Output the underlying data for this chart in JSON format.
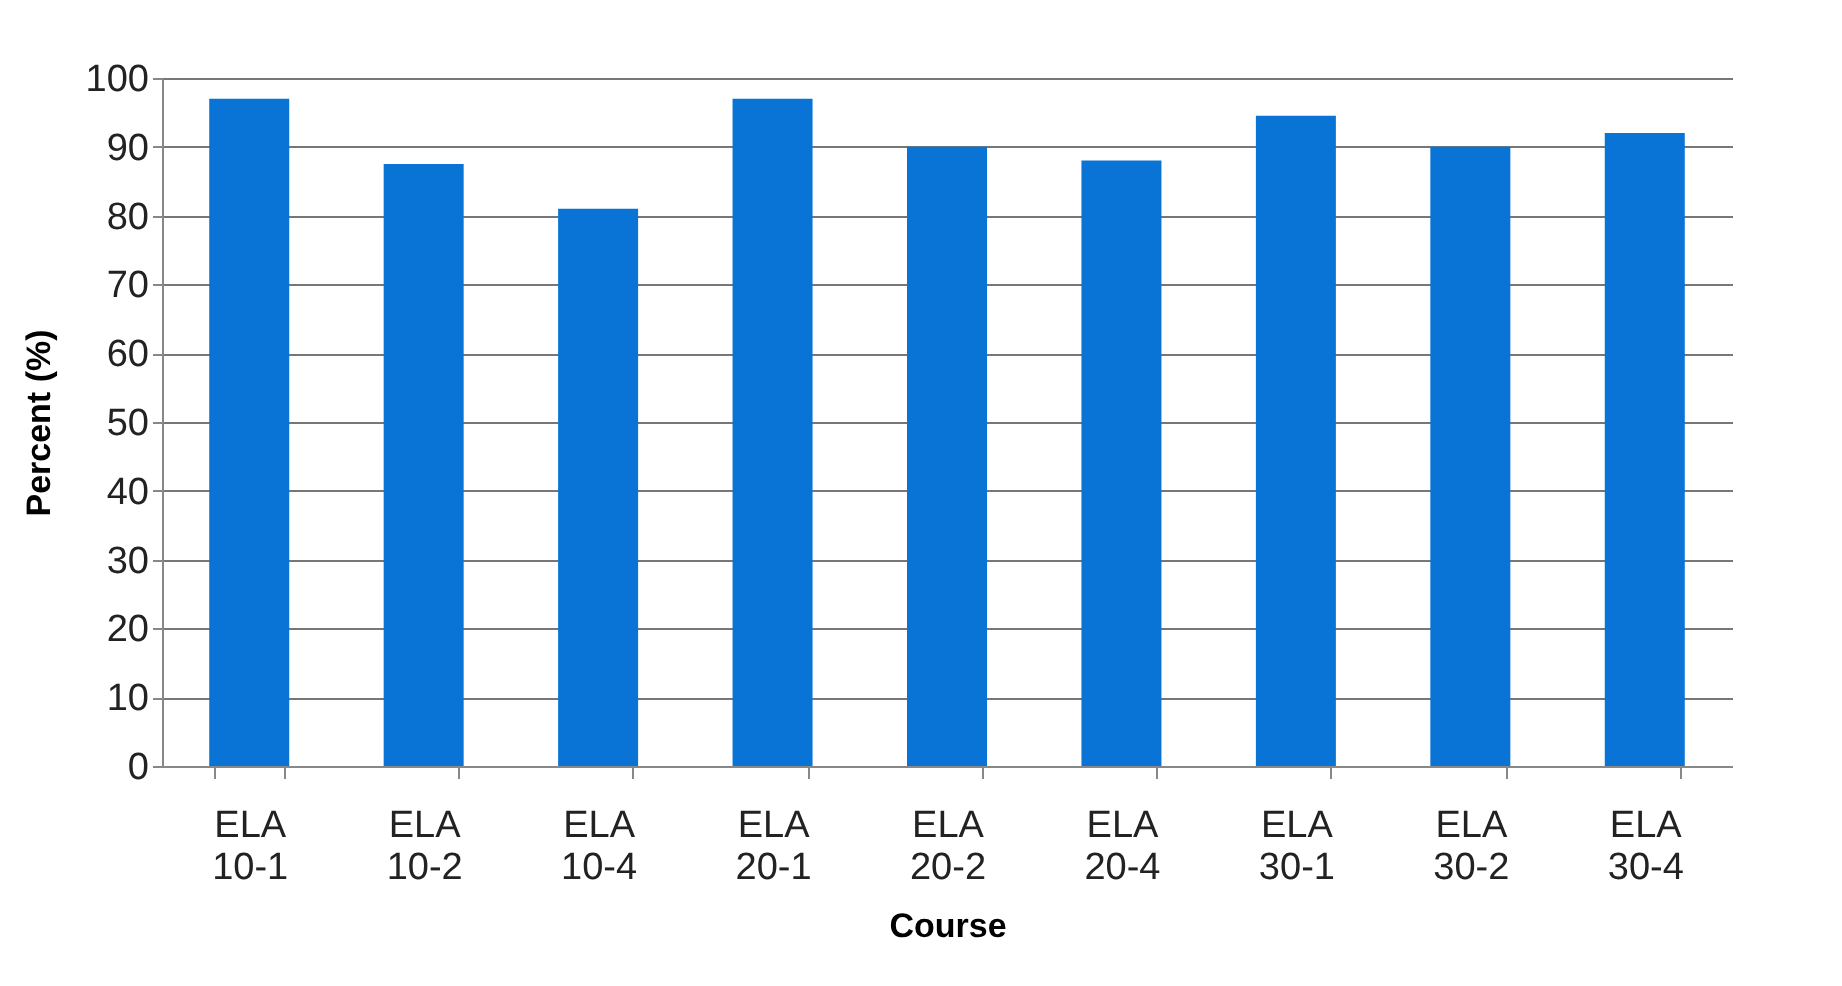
{
  "chart_data": {
    "type": "bar",
    "xlabel": "Course",
    "ylabel": "Percent (%)",
    "categories": [
      "ELA 10-1",
      "ELA 10-2",
      "ELA 10-4",
      "ELA 20-1",
      "ELA 20-2",
      "ELA 20-4",
      "ELA 30-1",
      "ELA 30-2",
      "ELA 30-4"
    ],
    "values": [
      97,
      87.5,
      81,
      97,
      90,
      88,
      94.5,
      90,
      92
    ],
    "color": "#0a74d6",
    "ylim": [
      0,
      100
    ],
    "yticks": [
      0,
      10,
      20,
      30,
      40,
      50,
      60,
      70,
      80,
      90,
      100
    ],
    "grid": "y"
  }
}
